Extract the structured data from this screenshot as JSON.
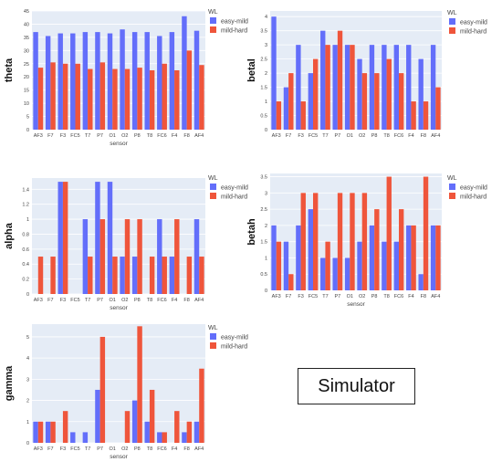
{
  "label": "Simulator",
  "colors": {
    "series0": "#636efa",
    "series1": "#ef553b",
    "plot_bg": "#e5ecf6",
    "grid": "#ffffff"
  },
  "chart_data": [
    {
      "type": "bar",
      "xlabel": "sensor",
      "ylabel": "theta",
      "ylim": [
        0,
        45
      ],
      "yticks": [
        0,
        5,
        10,
        15,
        20,
        25,
        30,
        35,
        40,
        45
      ],
      "legend_title": "WL",
      "legend_position": "top-right",
      "grid": true,
      "categories": [
        "AF3",
        "F7",
        "F3",
        "FC5",
        "T7",
        "P7",
        "O1",
        "O2",
        "P8",
        "T8",
        "FC6",
        "F4",
        "F8",
        "AF4"
      ],
      "series": [
        {
          "name": "easy-mild",
          "values": [
            37,
            35.5,
            36.5,
            36.5,
            37,
            37,
            36.5,
            38,
            37,
            37,
            35.5,
            37,
            43,
            37.5
          ]
        },
        {
          "name": "mild-hard",
          "values": [
            23.5,
            25.5,
            25,
            25,
            23,
            25.5,
            23,
            23,
            23.5,
            22.5,
            25,
            22.5,
            30,
            24.5
          ]
        }
      ]
    },
    {
      "type": "bar",
      "xlabel": "",
      "ylabel": "betal",
      "ylim": [
        0,
        4.2
      ],
      "yticks": [
        0,
        0.5,
        1,
        1.5,
        2,
        2.5,
        3,
        3.5,
        4
      ],
      "legend_title": "WL",
      "legend_position": "top-right",
      "grid": true,
      "categories": [
        "AF3",
        "F7",
        "F3",
        "FC5",
        "T7",
        "P7",
        "O1",
        "O2",
        "P8",
        "T8",
        "FC6",
        "F4",
        "F8",
        "AF4"
      ],
      "series": [
        {
          "name": "easy-mild",
          "values": [
            4,
            1.5,
            3,
            2,
            3.5,
            3,
            3,
            2.5,
            3,
            3,
            3,
            3,
            2.5,
            3
          ]
        },
        {
          "name": "mild-hard",
          "values": [
            1,
            2,
            1,
            2.5,
            3,
            3.5,
            3,
            2,
            2,
            2.5,
            2,
            1,
            1,
            1.5
          ]
        }
      ]
    },
    {
      "type": "bar",
      "xlabel": "sensor",
      "ylabel": "alpha",
      "ylim": [
        0,
        1.55
      ],
      "yticks": [
        0,
        0.2,
        0.4,
        0.6,
        0.8,
        1,
        1.2,
        1.4
      ],
      "legend_title": "WL",
      "legend_position": "top-right",
      "grid": true,
      "categories": [
        "AF3",
        "F7",
        "F3",
        "FC5",
        "T7",
        "P7",
        "O1",
        "O2",
        "P8",
        "T8",
        "FC6",
        "F4",
        "F8",
        "AF4"
      ],
      "series": [
        {
          "name": "easy-mild",
          "values": [
            0,
            0,
            1.5,
            0,
            1,
            1.5,
            1.5,
            0.5,
            0.5,
            0,
            1,
            0.5,
            0,
            1
          ]
        },
        {
          "name": "mild-hard",
          "values": [
            0.5,
            0.5,
            1.5,
            0,
            0.5,
            1,
            0.5,
            1,
            1,
            0.5,
            0.5,
            1,
            0.5,
            0.5
          ]
        }
      ]
    },
    {
      "type": "bar",
      "xlabel": "sensor",
      "ylabel": "betah",
      "ylim": [
        0,
        3.6
      ],
      "yticks": [
        0,
        0.5,
        1,
        1.5,
        2,
        2.5,
        3,
        3.5
      ],
      "legend_title": "WL",
      "legend_position": "top-right",
      "grid": true,
      "categories": [
        "AF3",
        "F7",
        "F3",
        "FC5",
        "T7",
        "P7",
        "O1",
        "O2",
        "P8",
        "T8",
        "FC6",
        "F4",
        "F8",
        "AF4"
      ],
      "series": [
        {
          "name": "easy-mild",
          "values": [
            2,
            1.5,
            2,
            2.5,
            1,
            1,
            1,
            1.5,
            2,
            1.5,
            1.5,
            2,
            0.5,
            2
          ]
        },
        {
          "name": "mild-hard",
          "values": [
            1.5,
            0.5,
            3,
            3,
            1.5,
            3,
            3,
            3,
            2.5,
            3.5,
            2.5,
            2,
            3.5,
            2
          ]
        }
      ]
    },
    {
      "type": "bar",
      "xlabel": "sensor",
      "ylabel": "gamma",
      "ylim": [
        0,
        5.6
      ],
      "yticks": [
        0,
        1,
        2,
        3,
        4,
        5
      ],
      "legend_title": "WL",
      "legend_position": "top-right",
      "grid": true,
      "categories": [
        "AF3",
        "F7",
        "F3",
        "FC5",
        "T7",
        "P7",
        "O1",
        "O2",
        "P8",
        "T8",
        "FC6",
        "F4",
        "F8",
        "AF4"
      ],
      "series": [
        {
          "name": "easy-mild",
          "values": [
            1,
            1,
            0,
            0.5,
            0.5,
            2.5,
            0,
            0,
            2,
            1,
            0.5,
            0,
            0.5,
            1
          ]
        },
        {
          "name": "mild-hard",
          "values": [
            1,
            1,
            1.5,
            0,
            0,
            5,
            0,
            1.5,
            5.5,
            2.5,
            0.5,
            1.5,
            1,
            3.5
          ]
        }
      ]
    }
  ]
}
